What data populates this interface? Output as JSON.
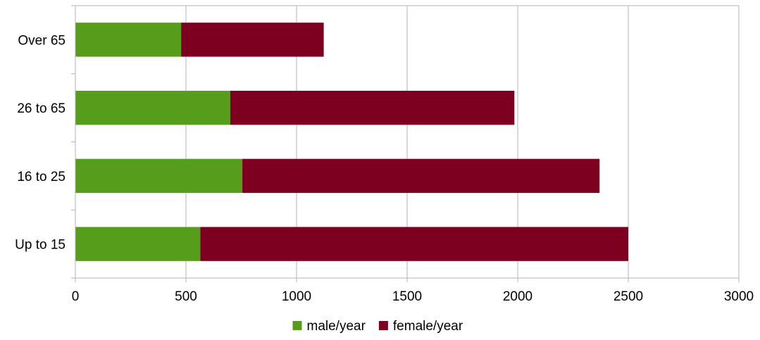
{
  "chart_data": {
    "type": "bar",
    "orientation": "horizontal",
    "stacked": true,
    "categories": [
      "Up to 15",
      "16 to 25",
      "26 to 65",
      "Over 65"
    ],
    "series": [
      {
        "name": "male/year",
        "values": [
          565,
          755,
          700,
          478
        ],
        "color": "#579d1c"
      },
      {
        "name": "female/year",
        "values": [
          1935,
          1615,
          1285,
          645
        ],
        "color": "#7e0021"
      }
    ],
    "xlim": [
      0,
      3000
    ],
    "x_ticks": [
      0,
      500,
      1000,
      1500,
      2000,
      2500,
      3000
    ],
    "grid": "vertical",
    "legend_position": "bottom"
  }
}
